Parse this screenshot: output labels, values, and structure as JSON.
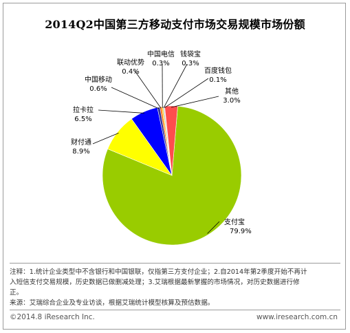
{
  "chart_data": {
    "type": "pie",
    "title": "2014Q2中国第三方移动支付市场交易规模市场份额",
    "slices": [
      {
        "label": "支付宝",
        "value": 79.9,
        "display": "79.9%",
        "color": "#99cc00"
      },
      {
        "label": "财付通",
        "value": 8.9,
        "display": "8.9%",
        "color": "#ffff00"
      },
      {
        "label": "拉卡拉",
        "value": 6.5,
        "display": "6.5%",
        "color": "#0000ff"
      },
      {
        "label": "中国移动",
        "value": 0.6,
        "display": "0.6%",
        "color": "#333399"
      },
      {
        "label": "联动优势",
        "value": 0.4,
        "display": "0.4%",
        "color": "#ff6600"
      },
      {
        "label": "中国电信",
        "value": 0.3,
        "display": "0.3%",
        "color": "#ffcc00"
      },
      {
        "label": "钱袋宝",
        "value": 0.3,
        "display": "0.3%",
        "color": "#c0c0c0"
      },
      {
        "label": "百度钱包",
        "value": 0.1,
        "display": "0.1%",
        "color": "#3366ff"
      },
      {
        "label": "其他",
        "value": 3.0,
        "display": "3.0%",
        "color": "#ff4d4d"
      }
    ]
  },
  "notes": {
    "line1": "注释：1.统计企业类型中不含银行和中国银联，仅指第三方支付企业；2.自2014年第2季度开始不再计",
    "line2": "入短信支付交易规模，历史数据已做删减处理；3.艾瑞根据最新掌握的市场情况，对历史数据进行修",
    "line3": "正。",
    "line4": "来源：艾瑞综合企业及专业访谈，根据艾瑞统计模型核算及预估数据。"
  },
  "footer": {
    "copyright": "©2014.8 iResearch Inc.",
    "website": "www.iresearch.com.cn"
  }
}
